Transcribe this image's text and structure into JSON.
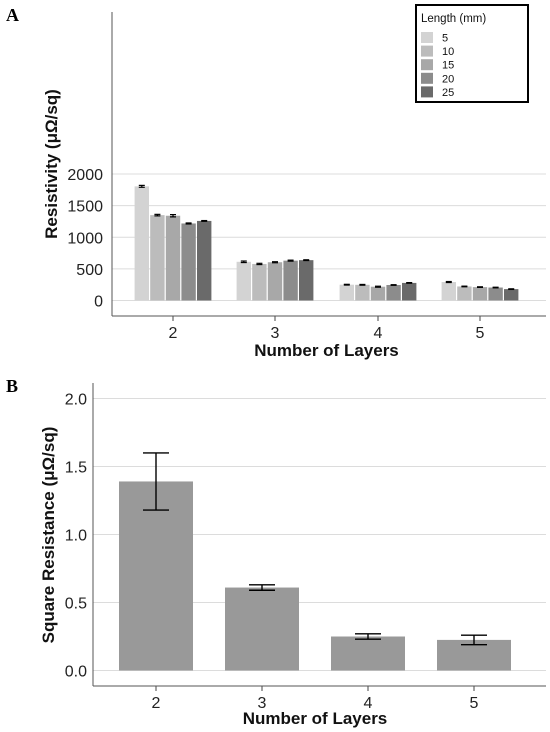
{
  "panels": {
    "a": {
      "letter": "A"
    },
    "b": {
      "letter": "B"
    }
  },
  "chart_data": [
    {
      "type": "bar",
      "title": "",
      "xlabel": "Number of Layers",
      "ylabel": "Resistivity (μΩ/sq)",
      "categories": [
        "2",
        "3",
        "4",
        "5"
      ],
      "ylim": [
        0,
        2250
      ],
      "yticks": [
        0,
        500,
        1000,
        1500,
        2000
      ],
      "grid": "horizontal",
      "legend": {
        "title": "Length (mm)",
        "position": "top-right"
      },
      "series": [
        {
          "name": "5",
          "color": "#d3d3d3",
          "values": [
            1805,
            612,
            250,
            292
          ],
          "errors": [
            15,
            12,
            6,
            8
          ]
        },
        {
          "name": "10",
          "color": "#bcbcbc",
          "values": [
            1350,
            578,
            248,
            222
          ],
          "errors": [
            12,
            10,
            6,
            5
          ]
        },
        {
          "name": "15",
          "color": "#a8a8a8",
          "values": [
            1340,
            605,
            218,
            212
          ],
          "errors": [
            18,
            8,
            8,
            5
          ]
        },
        {
          "name": "20",
          "color": "#8c8c8c",
          "values": [
            1218,
            630,
            245,
            205
          ],
          "errors": [
            8,
            8,
            5,
            5
          ]
        },
        {
          "name": "25",
          "color": "#6a6a6a",
          "values": [
            1258,
            638,
            278,
            180
          ],
          "errors": [
            6,
            6,
            5,
            5
          ]
        }
      ]
    },
    {
      "type": "bar",
      "title": "",
      "xlabel": "Number of Layers",
      "ylabel": "Square Resistance (μΩ/sq)",
      "categories": [
        "2",
        "3",
        "4",
        "5"
      ],
      "ylim": [
        -0.05,
        2.05
      ],
      "yticks": [
        "0.0",
        "0.5",
        "1.0",
        "1.5",
        "2.0"
      ],
      "grid": "horizontal",
      "color": "#999999",
      "values": [
        1.39,
        0.61,
        0.25,
        0.225
      ],
      "errors": [
        0.21,
        0.02,
        0.02,
        0.035
      ]
    }
  ]
}
